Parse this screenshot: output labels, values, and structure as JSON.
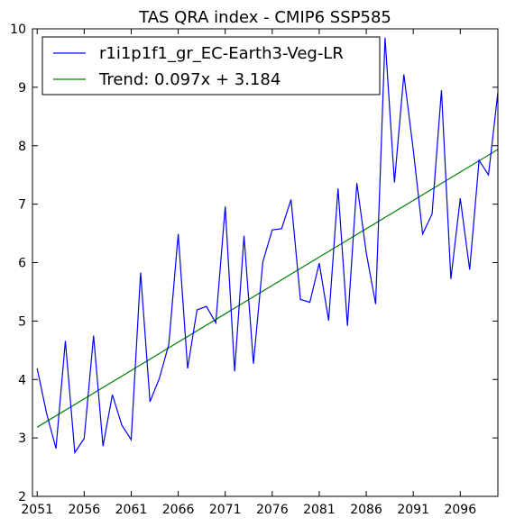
{
  "chart_data": {
    "type": "line",
    "title": "TAS QRA index - CMIP6 SSP585",
    "xlabel": "",
    "ylabel": "",
    "xlim": [
      2050.5,
      2100
    ],
    "ylim": [
      2,
      10
    ],
    "xticks": [
      2051,
      2056,
      2061,
      2066,
      2071,
      2076,
      2081,
      2086,
      2091,
      2096
    ],
    "yticks": [
      2,
      3,
      4,
      5,
      6,
      7,
      8,
      9,
      10
    ],
    "grid": false,
    "legend_position": "top-left",
    "x": [
      2051,
      2052,
      2053,
      2054,
      2055,
      2056,
      2057,
      2058,
      2059,
      2060,
      2061,
      2062,
      2063,
      2064,
      2065,
      2066,
      2067,
      2068,
      2069,
      2070,
      2071,
      2072,
      2073,
      2074,
      2075,
      2076,
      2077,
      2078,
      2079,
      2080,
      2081,
      2082,
      2083,
      2084,
      2085,
      2086,
      2087,
      2088,
      2089,
      2090,
      2091,
      2092,
      2093,
      2094,
      2095,
      2096,
      2097,
      2098,
      2099,
      2100
    ],
    "series": [
      {
        "name": "r1i1p1f1_gr_EC-Earth3-Veg-LR",
        "color": "#0000ff",
        "values": [
          4.19,
          3.42,
          2.82,
          4.66,
          2.75,
          2.99,
          4.75,
          2.86,
          3.74,
          3.22,
          2.97,
          5.83,
          3.62,
          4.02,
          4.6,
          6.49,
          4.19,
          5.19,
          5.25,
          4.97,
          6.96,
          4.14,
          6.46,
          4.27,
          6.01,
          6.56,
          6.58,
          7.08,
          5.37,
          5.32,
          5.99,
          5.01,
          7.27,
          4.92,
          7.36,
          6.17,
          5.29,
          9.85,
          7.37,
          9.22,
          7.93,
          6.49,
          6.83,
          8.95,
          5.72,
          7.1,
          5.88,
          7.75,
          7.5,
          8.91
        ]
      },
      {
        "name": "Trend: 0.097x + 3.184",
        "color": "#008000",
        "slope": 0.097,
        "intercept": 3.184
      }
    ]
  }
}
